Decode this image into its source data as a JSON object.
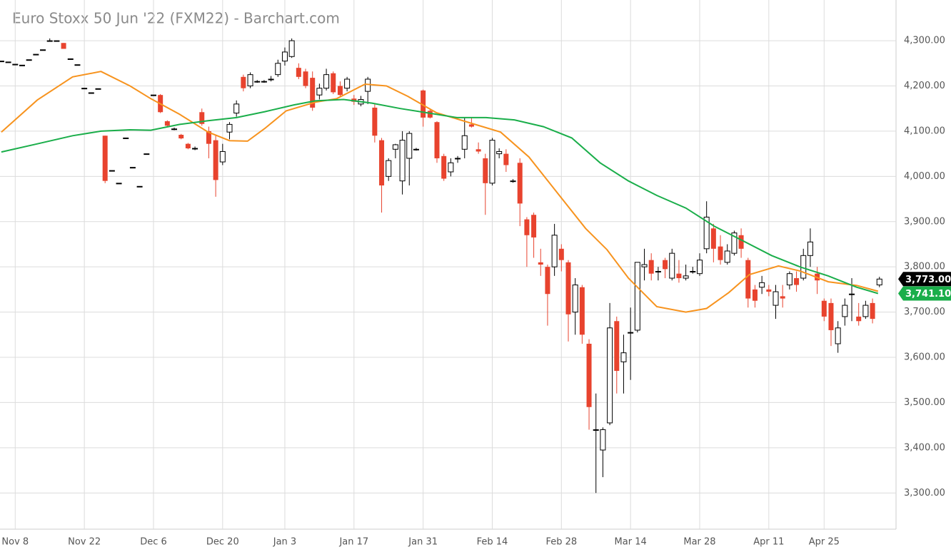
{
  "chart_data": {
    "type": "candlestick",
    "title": "Euro Stoxx 50 Jun '22 (FXM22) - Barchart.com",
    "xlim": [
      -0.2,
      129.4
    ],
    "xticks": [
      {
        "value": 2,
        "label": "Nov 8"
      },
      {
        "value": 12,
        "label": "Nov 22"
      },
      {
        "value": 22,
        "label": "Dec 6"
      },
      {
        "value": 32,
        "label": "Dec 20"
      },
      {
        "value": 41,
        "label": "Jan 3"
      },
      {
        "value": 51,
        "label": "Jan 17"
      },
      {
        "value": 61,
        "label": "Jan 31"
      },
      {
        "value": 71,
        "label": "Feb 14"
      },
      {
        "value": 81,
        "label": "Feb 28"
      },
      {
        "value": 91,
        "label": "Mar 14"
      },
      {
        "value": 101,
        "label": "Mar 28"
      },
      {
        "value": 111,
        "label": "Apr 11"
      },
      {
        "value": 119,
        "label": "Apr 25"
      }
    ],
    "ylim": [
      3220,
      4390
    ],
    "yticks": [
      {
        "value": 3300,
        "label": "3,300.00"
      },
      {
        "value": 3400,
        "label": "3,400.00"
      },
      {
        "value": 3500,
        "label": "3,500.00"
      },
      {
        "value": 3600,
        "label": "3,600.00"
      },
      {
        "value": 3700,
        "label": "3,700.00"
      },
      {
        "value": 3800,
        "label": "3,800.00"
      },
      {
        "value": 3900,
        "label": "3,900.00"
      },
      {
        "value": 4000,
        "label": "4,000.00"
      },
      {
        "value": 4100,
        "label": "4,100.00"
      },
      {
        "value": 4200,
        "label": "4,200.00"
      },
      {
        "value": 4300,
        "label": "4,300.00"
      }
    ],
    "grid": true,
    "up_color": "#ffffff",
    "down_color": "#e8432e",
    "last_label": {
      "value": 3773,
      "label": "3,773.00",
      "color": "#000000"
    },
    "ohlc": [
      [
        4255,
        4255,
        4255,
        4255
      ],
      [
        4253,
        4253,
        4253,
        4253
      ],
      [
        4248,
        4248,
        4248,
        4248
      ],
      [
        4246,
        4246,
        4246,
        4246
      ],
      [
        4258,
        4258,
        4258,
        4258
      ],
      [
        4270,
        4270,
        4270,
        4270
      ],
      [
        4280,
        4280,
        4280,
        4280
      ],
      [
        4300,
        4305,
        4300,
        4300
      ],
      [
        4300,
        4300,
        4300,
        4300
      ],
      [
        4295,
        4295,
        4282,
        4282
      ],
      [
        4260,
        4260,
        4260,
        4260
      ],
      [
        4247,
        4247,
        4247,
        4247
      ],
      [
        4195,
        4195,
        4195,
        4195
      ],
      [
        4185,
        4185,
        4185,
        4185
      ],
      [
        4194,
        4194,
        4194,
        4194
      ],
      [
        4090,
        4090,
        3985,
        3990
      ],
      [
        4013,
        4013,
        4013,
        4013
      ],
      [
        3985,
        3985,
        3985,
        3985
      ],
      [
        4085,
        4085,
        4085,
        4085
      ],
      [
        4020,
        4020,
        4020,
        4020
      ],
      [
        3978,
        3978,
        3978,
        3978
      ],
      [
        4050,
        4050,
        4050,
        4050
      ],
      [
        4180,
        4180,
        4180,
        4180
      ],
      [
        4180,
        4182,
        4140,
        4142
      ],
      [
        4122,
        4124,
        4110,
        4112
      ],
      [
        4105,
        4108,
        4102,
        4105
      ],
      [
        4092,
        4094,
        4082,
        4084
      ],
      [
        4072,
        4074,
        4060,
        4062
      ],
      [
        4062,
        4066,
        4058,
        4062
      ],
      [
        4142,
        4150,
        4112,
        4116
      ],
      [
        4100,
        4110,
        4040,
        4072
      ],
      [
        4080,
        4090,
        3955,
        3992
      ],
      [
        4032,
        4072,
        4025,
        4055
      ],
      [
        4098,
        4120,
        4082,
        4115
      ],
      [
        4140,
        4168,
        4132,
        4160
      ],
      [
        4220,
        4225,
        4188,
        4195
      ],
      [
        4200,
        4230,
        4195,
        4225
      ],
      [
        4210,
        4213,
        4207,
        4210
      ],
      [
        4210,
        4213,
        4207,
        4210
      ],
      [
        4215,
        4222,
        4210,
        4215
      ],
      [
        4225,
        4258,
        4220,
        4250
      ],
      [
        4255,
        4285,
        4245,
        4275
      ],
      [
        4265,
        4305,
        4262,
        4300
      ],
      [
        4240,
        4250,
        4215,
        4220
      ],
      [
        4232,
        4238,
        4195,
        4200
      ],
      [
        4218,
        4232,
        4145,
        4152
      ],
      [
        4180,
        4205,
        4170,
        4195
      ],
      [
        4195,
        4238,
        4190,
        4225
      ],
      [
        4228,
        4232,
        4182,
        4186
      ],
      [
        4200,
        4210,
        4175,
        4180
      ],
      [
        4195,
        4220,
        4188,
        4215
      ],
      [
        4172,
        4180,
        4158,
        4165
      ],
      [
        4160,
        4178,
        4155,
        4170
      ],
      [
        4188,
        4220,
        4160,
        4215
      ],
      [
        4152,
        4160,
        4075,
        4090
      ],
      [
        4080,
        4085,
        3920,
        3980
      ],
      [
        4000,
        4040,
        3990,
        4035
      ],
      [
        4060,
        4072,
        4040,
        4070
      ],
      [
        3990,
        4100,
        3960,
        4080
      ],
      [
        4040,
        4100,
        3980,
        4095
      ],
      [
        4060,
        4063,
        4057,
        4060
      ],
      [
        4190,
        4192,
        4110,
        4130
      ],
      [
        4145,
        4148,
        4128,
        4130
      ],
      [
        4120,
        4122,
        4030,
        4040
      ],
      [
        4045,
        4050,
        3990,
        3995
      ],
      [
        4010,
        4040,
        4000,
        4030
      ],
      [
        4040,
        4045,
        4030,
        4040
      ],
      [
        4060,
        4130,
        4040,
        4090
      ],
      [
        4115,
        4130,
        4108,
        4110
      ],
      [
        4060,
        4075,
        4050,
        4055
      ],
      [
        4040,
        4050,
        3915,
        3985
      ],
      [
        3985,
        4085,
        3980,
        4080
      ],
      [
        4050,
        4062,
        4040,
        4055
      ],
      [
        4050,
        4060,
        4010,
        4025
      ],
      [
        3990,
        3994,
        3986,
        3990
      ],
      [
        4030,
        4040,
        3890,
        3940
      ],
      [
        3905,
        3910,
        3800,
        3870
      ],
      [
        3915,
        3920,
        3820,
        3865
      ],
      [
        3810,
        3840,
        3780,
        3805
      ],
      [
        3800,
        3805,
        3670,
        3740
      ],
      [
        3800,
        3895,
        3780,
        3870
      ],
      [
        3840,
        3850,
        3790,
        3815
      ],
      [
        3810,
        3815,
        3635,
        3695
      ],
      [
        3700,
        3775,
        3650,
        3760
      ],
      [
        3755,
        3760,
        3630,
        3650
      ],
      [
        3630,
        3640,
        3440,
        3490
      ],
      [
        3440,
        3520,
        3300,
        3440
      ],
      [
        3395,
        3445,
        3335,
        3440
      ],
      [
        3455,
        3720,
        3450,
        3665
      ],
      [
        3680,
        3690,
        3520,
        3570
      ],
      [
        3590,
        3650,
        3520,
        3610
      ],
      [
        3655,
        3710,
        3550,
        3655
      ],
      [
        3660,
        3810,
        3655,
        3810
      ],
      [
        3800,
        3840,
        3770,
        3805
      ],
      [
        3815,
        3830,
        3770,
        3785
      ],
      [
        3790,
        3800,
        3770,
        3790
      ],
      [
        3815,
        3820,
        3775,
        3795
      ],
      [
        3775,
        3840,
        3770,
        3830
      ],
      [
        3785,
        3815,
        3765,
        3775
      ],
      [
        3775,
        3805,
        3770,
        3780
      ],
      [
        3790,
        3800,
        3785,
        3790
      ],
      [
        3785,
        3830,
        3780,
        3815
      ],
      [
        3840,
        3945,
        3830,
        3910
      ],
      [
        3885,
        3895,
        3810,
        3840
      ],
      [
        3845,
        3870,
        3805,
        3815
      ],
      [
        3810,
        3850,
        3805,
        3835
      ],
      [
        3830,
        3880,
        3825,
        3875
      ],
      [
        3870,
        3885,
        3820,
        3840
      ],
      [
        3815,
        3820,
        3710,
        3730
      ],
      [
        3750,
        3760,
        3710,
        3725
      ],
      [
        3755,
        3780,
        3740,
        3765
      ],
      [
        3750,
        3760,
        3735,
        3745
      ],
      [
        3715,
        3760,
        3685,
        3745
      ],
      [
        3735,
        3760,
        3710,
        3730
      ],
      [
        3760,
        3790,
        3750,
        3785
      ],
      [
        3775,
        3790,
        3745,
        3760
      ],
      [
        3775,
        3840,
        3770,
        3825
      ],
      [
        3825,
        3885,
        3800,
        3855
      ],
      [
        3785,
        3800,
        3740,
        3770
      ],
      [
        3725,
        3730,
        3680,
        3690
      ],
      [
        3720,
        3730,
        3625,
        3660
      ],
      [
        3630,
        3680,
        3610,
        3665
      ],
      [
        3690,
        3730,
        3670,
        3715
      ],
      [
        3740,
        3775,
        3680,
        3740
      ],
      [
        3690,
        3720,
        3670,
        3680
      ],
      [
        3690,
        3725,
        3685,
        3715
      ],
      [
        3720,
        3730,
        3675,
        3685
      ],
      [
        3760,
        3778,
        3755,
        3773
      ]
    ],
    "lines": [
      {
        "color": "#f7931e",
        "x": [
          0,
          5.2,
          10.3,
          14.4,
          18.6,
          21.6,
          25.8,
          29.9,
          33,
          35.6,
          38.1,
          41.2,
          45.4,
          48.5,
          52.6,
          55.7,
          58.8,
          62.9,
          67,
          72.2,
          76.3,
          80.4,
          84.5,
          87.6,
          90.7,
          94.8,
          99,
          102,
          105.2,
          108.2,
          112.4,
          115.5,
          119.6,
          123.7,
          126.8
        ],
        "values": [
          4098,
          4169,
          4220,
          4232,
          4200,
          4172,
          4137,
          4098,
          4079,
          4078,
          4106,
          4145,
          4164,
          4172,
          4204,
          4200,
          4177,
          4141,
          4122,
          4098,
          4043,
          3964,
          3885,
          3838,
          3775,
          3712,
          3700,
          3708,
          3743,
          3783,
          3802,
          3791,
          3767,
          3759,
          3746
        ]
      },
      {
        "color": "#1aae4a",
        "x": [
          0,
          5.2,
          10.3,
          14.4,
          18.6,
          21.6,
          25.8,
          29.9,
          34,
          38.1,
          42.3,
          45.4,
          49.5,
          53.6,
          57.7,
          61.8,
          65.9,
          70.1,
          74.2,
          78.4,
          82.5,
          86.6,
          90.7,
          94.8,
          99,
          103.1,
          107.2,
          111.4,
          115.5,
          119.6,
          123.7,
          126.8
        ],
        "values": [
          4054,
          4072,
          4090,
          4100,
          4103,
          4102,
          4115,
          4123,
          4130,
          4143,
          4158,
          4167,
          4170,
          4162,
          4150,
          4140,
          4130,
          4130,
          4125,
          4110,
          4085,
          4030,
          3990,
          3958,
          3930,
          3890,
          3858,
          3825,
          3800,
          3780,
          3755,
          3741.1
        ],
        "last_label": {
          "value": 3741.1,
          "label": "3,741.10"
        }
      }
    ]
  }
}
